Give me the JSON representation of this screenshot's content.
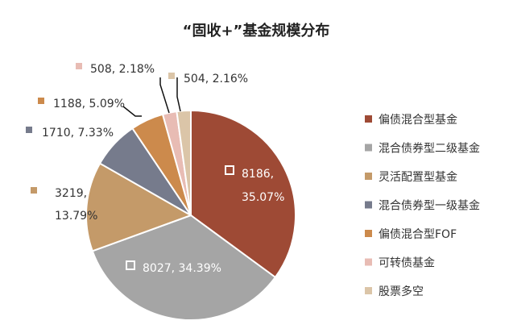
{
  "chart_data": {
    "type": "pie",
    "title": "“固收+”基金规模分布",
    "categories": [
      "偏债混合型基金",
      "混合债券型二级基金",
      "灵活配置型基金",
      "混合债券型一级基金",
      "偏债混合型FOF",
      "可转债基金",
      "股票多空"
    ],
    "values": [
      8186,
      8027,
      3219,
      1710,
      1188,
      508,
      504
    ],
    "percents": [
      "35.07%",
      "34.39%",
      "13.79%",
      "7.33%",
      "5.09%",
      "2.18%",
      "2.16%"
    ],
    "data_labels": [
      [
        "8186,",
        "35.07%"
      ],
      [
        "8027, 34.39%"
      ],
      [
        "3219,",
        "13.79%"
      ],
      [
        "1710, 7.33%"
      ],
      [
        "1188, 5.09%"
      ],
      [
        "508, 2.18%"
      ],
      [
        "504, 2.16%"
      ]
    ],
    "colors": [
      "#9e4a35",
      "#a5a5a5",
      "#c49a69",
      "#767b8c",
      "#cc8a4c",
      "#e8bcb4",
      "#dbc5a8"
    ],
    "legend_position": "right"
  }
}
